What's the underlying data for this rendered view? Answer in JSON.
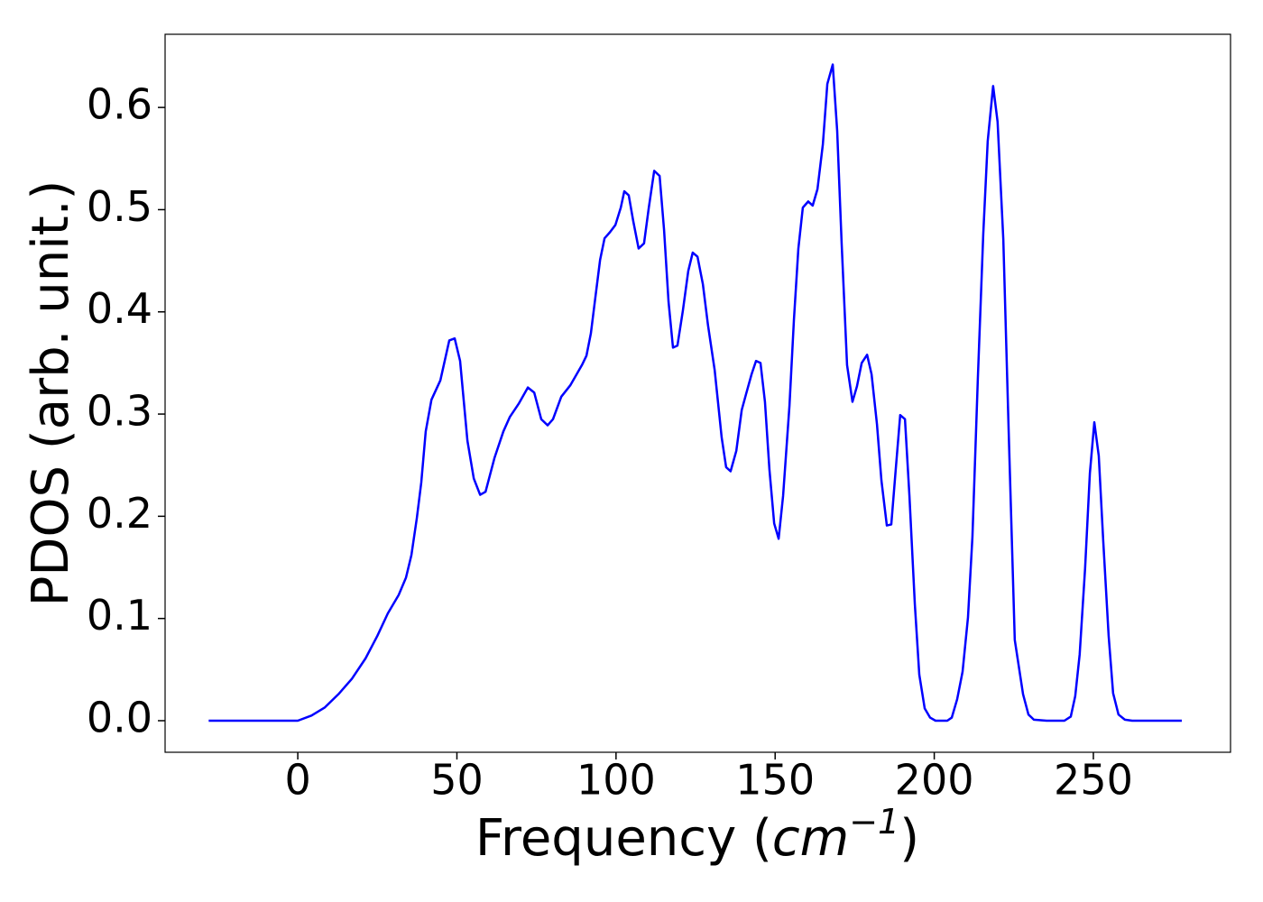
{
  "chart_data": {
    "type": "line",
    "xlabel": [
      "Frequency (",
      "cm",
      "−1",
      ")"
    ],
    "ylabel": "PDOS (arb. unit.)",
    "xlim": [
      -41.7,
      293.1
    ],
    "ylim": [
      -0.0309,
      0.6716
    ],
    "xticks": [
      0,
      50,
      100,
      150,
      200,
      250
    ],
    "yticks": [
      {
        "value": 0,
        "label": "0.0"
      },
      0.1,
      0.2,
      0.3,
      0.4,
      0.5,
      0.6
    ],
    "grid": false,
    "series": [
      {
        "color": "#0000ff",
        "x": [
          -28,
          -10,
          0,
          4.3,
          8.5,
          12.8,
          17,
          21.3,
          25,
          28.3,
          31.7,
          34,
          35.7,
          37.4,
          38.8,
          40.2,
          42,
          44.8,
          47.6,
          49.3,
          51,
          53.3,
          55.3,
          57.3,
          59,
          61.8,
          64.6,
          66.6,
          69.4,
          72.3,
          74.3,
          76.5,
          78.5,
          80.2,
          82.8,
          85.6,
          89.3,
          90.7,
          92.1,
          93.5,
          95,
          96.4,
          98.1,
          99.8,
          101.5,
          102.6,
          104,
          105.4,
          107.1,
          108.8,
          110.3,
          112,
          113.7,
          115.1,
          116.5,
          117.9,
          119.3,
          121,
          122.7,
          124.1,
          125.6,
          127.3,
          128.9,
          131,
          133.2,
          134.6,
          136,
          137.8,
          139.5,
          140.9,
          142.6,
          144,
          145.4,
          146.8,
          148.2,
          149.7,
          151.1,
          152.5,
          154.5,
          155.9,
          157.3,
          158.7,
          160.4,
          161.8,
          163.3,
          165,
          166.4,
          168.1,
          169.5,
          170.9,
          172.6,
          174.3,
          175.7,
          177.2,
          178.9,
          180.3,
          182,
          183.4,
          185.1,
          186.5,
          187.9,
          189.3,
          190.8,
          192.2,
          193.9,
          195.3,
          197,
          198.7,
          200.4,
          204.1,
          205.5,
          207.2,
          208.9,
          210.6,
          212,
          213.7,
          215.4,
          216.8,
          218.5,
          219.9,
          221.7,
          223.4,
          225.3,
          227.9,
          229.6,
          231.3,
          235.3,
          240.9,
          242.9,
          244.3,
          245.7,
          247.4,
          248.9,
          250.3,
          251.7,
          253.1,
          254.8,
          256.2,
          257.9,
          259.9,
          262.2,
          277.8
        ],
        "values": [
          0,
          0,
          0,
          0.005,
          0.013,
          0.026,
          0.041,
          0.061,
          0.083,
          0.105,
          0.123,
          0.14,
          0.162,
          0.198,
          0.233,
          0.283,
          0.314,
          0.333,
          0.372,
          0.374,
          0.352,
          0.274,
          0.237,
          0.221,
          0.224,
          0.257,
          0.283,
          0.297,
          0.31,
          0.326,
          0.321,
          0.295,
          0.289,
          0.295,
          0.317,
          0.328,
          0.348,
          0.357,
          0.379,
          0.414,
          0.451,
          0.472,
          0.478,
          0.485,
          0.502,
          0.518,
          0.514,
          0.489,
          0.462,
          0.467,
          0.502,
          0.538,
          0.533,
          0.48,
          0.41,
          0.365,
          0.367,
          0.401,
          0.44,
          0.458,
          0.454,
          0.427,
          0.387,
          0.343,
          0.277,
          0.248,
          0.244,
          0.264,
          0.304,
          0.32,
          0.339,
          0.352,
          0.35,
          0.312,
          0.246,
          0.193,
          0.178,
          0.22,
          0.308,
          0.392,
          0.462,
          0.502,
          0.508,
          0.504,
          0.52,
          0.564,
          0.623,
          0.642,
          0.577,
          0.467,
          0.348,
          0.312,
          0.327,
          0.35,
          0.358,
          0.339,
          0.29,
          0.235,
          0.191,
          0.192,
          0.246,
          0.299,
          0.295,
          0.22,
          0.114,
          0.045,
          0.012,
          0.003,
          0,
          0,
          0.003,
          0.021,
          0.048,
          0.101,
          0.18,
          0.335,
          0.476,
          0.567,
          0.621,
          0.586,
          0.471,
          0.282,
          0.079,
          0.026,
          0.006,
          0.001,
          0,
          0,
          0.004,
          0.024,
          0.065,
          0.149,
          0.242,
          0.292,
          0.259,
          0.176,
          0.083,
          0.027,
          0.006,
          0.001,
          0,
          0
        ]
      }
    ]
  }
}
